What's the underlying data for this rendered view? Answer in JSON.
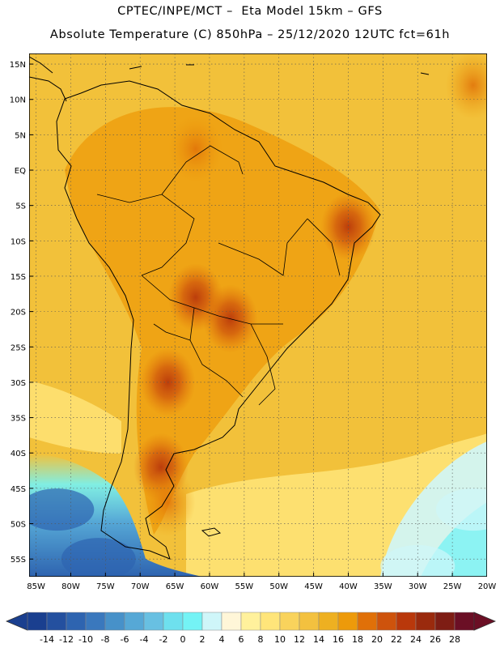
{
  "header": {
    "line1": "CPTEC/INPE/MCT –  Eta Model 15km – GFS",
    "line2": "Absolute Temperature (C) 850hPa – 25/12/2020 12UTC fct=61h"
  },
  "map": {
    "lat_labels": [
      "15N",
      "10N",
      "5N",
      "EQ",
      "5S",
      "10S",
      "15S",
      "20S",
      "25S",
      "30S",
      "35S",
      "40S",
      "45S",
      "50S",
      "55S"
    ],
    "lat_values": [
      15,
      10,
      5,
      0,
      -5,
      -10,
      -15,
      -20,
      -25,
      -30,
      -35,
      -40,
      -45,
      -50,
      -55
    ],
    "lon_labels": [
      "85W",
      "80W",
      "75W",
      "70W",
      "65W",
      "60W",
      "55W",
      "50W",
      "45W",
      "40W",
      "35W",
      "30W",
      "25W",
      "20W"
    ],
    "lon_values": [
      -85,
      -80,
      -75,
      -70,
      -65,
      -60,
      -55,
      -50,
      -45,
      -40,
      -35,
      -30,
      -25,
      -20
    ],
    "lat_range": [
      -57.5,
      16.5
    ],
    "lon_range": [
      -86,
      -20
    ],
    "background_color": "#f2c13a",
    "grid_style": "dotted",
    "hot_spots": [
      {
        "lat": 12,
        "lon": -22,
        "value": 20
      },
      {
        "lat": 3,
        "lon": -62,
        "value": 22
      },
      {
        "lat": -8,
        "lon": -40,
        "value": 23
      },
      {
        "lat": -18,
        "lon": -62,
        "value": 25
      },
      {
        "lat": -21,
        "lon": -57,
        "value": 25
      },
      {
        "lat": -30,
        "lon": -66,
        "value": 25
      },
      {
        "lat": -42,
        "lon": -67,
        "value": 24
      },
      {
        "lat": -47,
        "lon": -66,
        "value": 22
      }
    ],
    "cold_spots": [
      {
        "lat": -48,
        "lon": -82,
        "value": -6
      },
      {
        "lat": -55,
        "lon": -76,
        "value": -10
      },
      {
        "lat": -56,
        "lon": -30,
        "value": 2
      },
      {
        "lat": -48,
        "lon": -22,
        "value": 4
      }
    ]
  },
  "colorbar": {
    "labels": [
      "-14",
      "-12",
      "-10",
      "-8",
      "-6",
      "-4",
      "-2",
      "0",
      "2",
      "4",
      "6",
      "8",
      "10",
      "12",
      "14",
      "16",
      "18",
      "20",
      "22",
      "24",
      "26",
      "28"
    ],
    "colors": [
      "#1a3f8f",
      "#24509f",
      "#2e64b0",
      "#3a78bd",
      "#4791c9",
      "#56a8d6",
      "#68c0e2",
      "#6ee0ee",
      "#74f3f5",
      "#cff6f9",
      "#fff6d8",
      "#fff19c",
      "#ffe57a",
      "#f9d35c",
      "#f3c13f",
      "#eeb021",
      "#ed9a0a",
      "#e07008",
      "#ce530c",
      "#b9380b",
      "#9a2a0d",
      "#7e1d14",
      "#6b0f25"
    ]
  }
}
